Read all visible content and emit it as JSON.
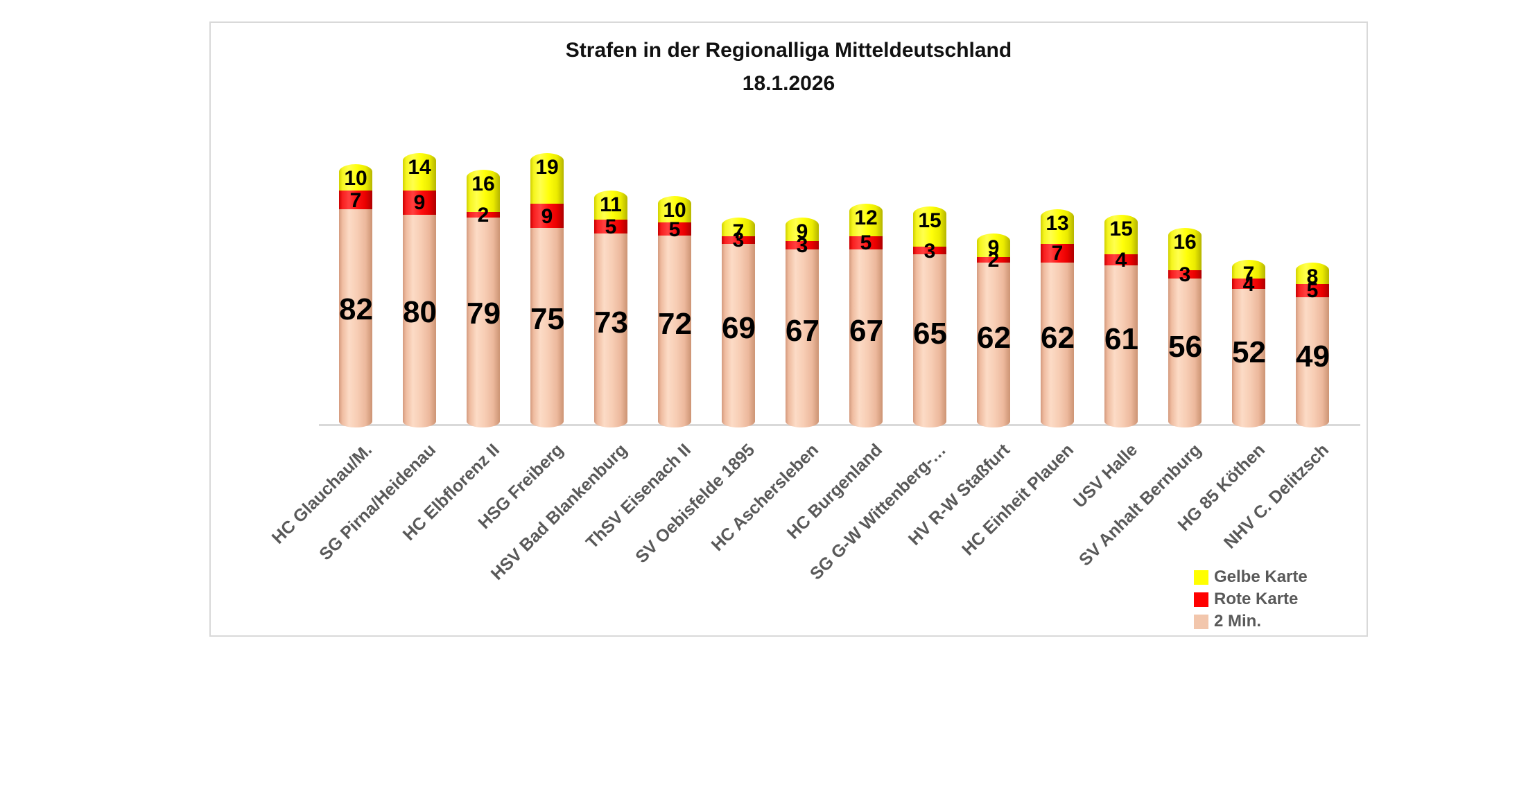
{
  "chart_data": {
    "type": "bar",
    "stacked": true,
    "style": "3d-cylinder",
    "title": "Strafen in der Regionalliga Mitteldeutschland",
    "subtitle": "18.1.2026",
    "categories": [
      "HC Glauchau/M.",
      "SG Pirna/Heidenau",
      "HC Elbflorenz II",
      "HSG Freiberg",
      "HSV Bad Blankenburg",
      "ThSV Eisenach II",
      "SV Oebisfelde 1895",
      "HC Aschersleben",
      "HC Burgenland",
      "SG G-W Wittenberg-…",
      "HV R-W Staßfurt",
      "HC Einheit Plauen",
      "USV Halle",
      "SV Anhalt Bernburg",
      "HG 85 Köthen",
      "NHV C. Delitzsch"
    ],
    "series": [
      {
        "name": "2 Min.",
        "color": "#F5C8AE",
        "values": [
          82,
          80,
          79,
          75,
          73,
          72,
          69,
          67,
          67,
          65,
          62,
          62,
          61,
          56,
          52,
          49
        ]
      },
      {
        "name": "Rote Karte",
        "color": "#FF0000",
        "values": [
          7,
          9,
          2,
          9,
          5,
          5,
          3,
          3,
          5,
          3,
          2,
          7,
          4,
          3,
          4,
          5
        ]
      },
      {
        "name": "Gelbe Karte",
        "color": "#FFFF00",
        "values": [
          10,
          14,
          16,
          19,
          11,
          10,
          7,
          9,
          12,
          15,
          9,
          13,
          15,
          16,
          7,
          8
        ]
      }
    ],
    "legend": {
      "position": "bottom-right",
      "entries": [
        "Gelbe Karte",
        "Rote Karte",
        "2 Min."
      ],
      "entry_colors": [
        "#FFFF00",
        "#FF0000",
        "#F2C6AC"
      ]
    },
    "value_labels": true,
    "ylim": [
      0,
      103
    ],
    "grid": false,
    "axis_line_color": "#D9D9D9",
    "axis_label_color": "#595959"
  }
}
